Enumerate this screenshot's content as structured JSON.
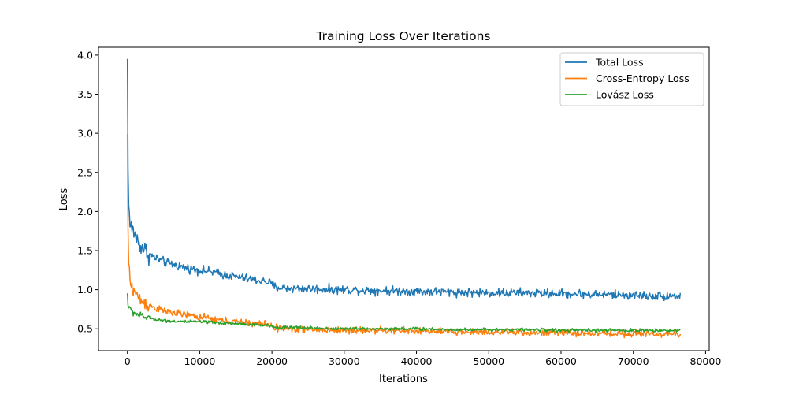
{
  "chart_data": {
    "type": "line",
    "title": "Training Loss Over Iterations",
    "xlabel": "Iterations",
    "ylabel": "Loss",
    "xlim": [
      -4000,
      80500
    ],
    "ylim": [
      0.22,
      4.1
    ],
    "xticks": [
      0,
      10000,
      20000,
      30000,
      40000,
      50000,
      60000,
      70000,
      80000
    ],
    "xtick_labels": [
      "0",
      "10000",
      "20000",
      "30000",
      "40000",
      "50000",
      "60000",
      "70000",
      "80000"
    ],
    "yticks": [
      0.5,
      1.0,
      1.5,
      2.0,
      2.5,
      3.0,
      3.5,
      4.0
    ],
    "ytick_labels": [
      "0.5",
      "1.0",
      "1.5",
      "2.0",
      "2.5",
      "3.0",
      "3.5",
      "4.0"
    ],
    "grid": false,
    "legend_position": "top-right",
    "x": [
      0,
      100,
      300,
      500,
      1000,
      1500,
      2000,
      3000,
      4000,
      5000,
      6000,
      8000,
      10000,
      12000,
      14000,
      16000,
      18000,
      19500,
      20500,
      22000,
      25000,
      30000,
      35000,
      40000,
      45000,
      50000,
      55000,
      60000,
      65000,
      70000,
      72000,
      74000,
      76500
    ],
    "series": [
      {
        "name": "Total Loss",
        "color": "#1f77b4",
        "values": [
          3.93,
          2.4,
          1.85,
          1.8,
          1.72,
          1.6,
          1.55,
          1.45,
          1.4,
          1.36,
          1.33,
          1.28,
          1.25,
          1.22,
          1.18,
          1.15,
          1.12,
          1.1,
          1.03,
          1.02,
          1.01,
          1.0,
          0.99,
          0.98,
          0.97,
          0.96,
          0.96,
          0.95,
          0.94,
          0.93,
          0.92,
          0.92,
          0.92
        ]
      },
      {
        "name": "Cross-Entropy Loss",
        "color": "#ff7f0e",
        "values": [
          2.98,
          1.55,
          1.15,
          1.05,
          0.98,
          0.9,
          0.85,
          0.8,
          0.76,
          0.73,
          0.71,
          0.68,
          0.65,
          0.62,
          0.6,
          0.58,
          0.57,
          0.56,
          0.51,
          0.5,
          0.49,
          0.48,
          0.48,
          0.47,
          0.46,
          0.46,
          0.45,
          0.45,
          0.44,
          0.44,
          0.44,
          0.43,
          0.43
        ]
      },
      {
        "name": "Lovász Loss",
        "color": "#2ca02c",
        "values": [
          0.95,
          0.8,
          0.76,
          0.73,
          0.7,
          0.68,
          0.66,
          0.64,
          0.62,
          0.61,
          0.6,
          0.59,
          0.59,
          0.58,
          0.57,
          0.56,
          0.55,
          0.54,
          0.52,
          0.52,
          0.51,
          0.5,
          0.5,
          0.5,
          0.49,
          0.49,
          0.49,
          0.48,
          0.48,
          0.48,
          0.48,
          0.48,
          0.48
        ]
      }
    ]
  }
}
